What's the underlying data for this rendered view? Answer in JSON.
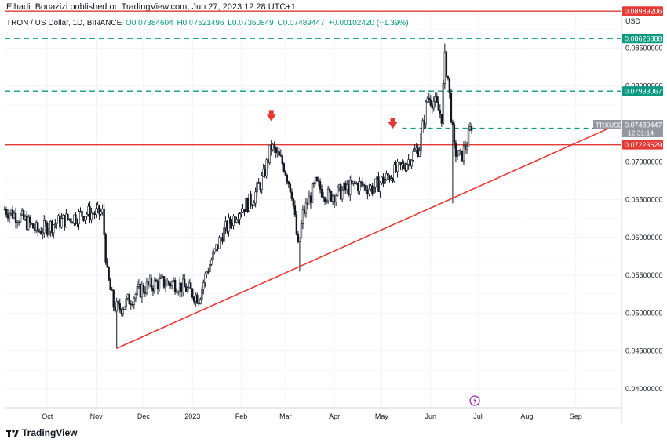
{
  "header": {
    "publisher": "Elhadi_Bouazizi published on TradingView.com, Jun 27, 2023 12:28 UTC+1"
  },
  "symbol": {
    "title": "TRON / US Dollar, 1D, BINANCE",
    "open": "O0.07384604",
    "high": "H0.07521496",
    "low": "L0.07360849",
    "close": "C0.07489447",
    "change": "+0.00102420 (+1.39%)"
  },
  "footer": {
    "brand": "TradingView",
    "logo": "tradingview-logo-icon"
  },
  "colors": {
    "up": "#26a69a",
    "down": "#ef5350",
    "candle": "#131722",
    "resistance": "#e53935",
    "teal_level": "#089981",
    "price_tag": "#9598a1"
  },
  "chart_data": {
    "type": "candlestick",
    "currency": "USD",
    "ylim": [
      0.0375,
      0.0895
    ],
    "xlim": [
      "2022-09-04",
      "2023-09-30"
    ],
    "x_ticks": [
      {
        "label": "Oct",
        "date": "2022-10-01"
      },
      {
        "label": "Nov",
        "date": "2022-11-01"
      },
      {
        "label": "Dec",
        "date": "2022-12-01"
      },
      {
        "label": "2023",
        "date": "2023-01-01"
      },
      {
        "label": "Feb",
        "date": "2023-02-01"
      },
      {
        "label": "Mar",
        "date": "2023-03-01"
      },
      {
        "label": "Apr",
        "date": "2023-04-01"
      },
      {
        "label": "May",
        "date": "2023-05-01"
      },
      {
        "label": "Jun",
        "date": "2023-06-01"
      },
      {
        "label": "Jul",
        "date": "2023-07-01"
      },
      {
        "label": "Aug",
        "date": "2023-08-01"
      },
      {
        "label": "Sep",
        "date": "2023-09-01"
      }
    ],
    "y_ticks": [
      "0.04000000",
      "0.04500000",
      "0.05000000",
      "0.05500000",
      "0.06000000",
      "0.06500000",
      "0.07000000",
      "0.08000000",
      "0.08500000"
    ],
    "price_path": [
      [
        "2022-09-04",
        0.0637
      ],
      [
        "2022-09-15",
        0.0625
      ],
      [
        "2022-09-25",
        0.0608
      ],
      [
        "2022-10-05",
        0.0618
      ],
      [
        "2022-10-15",
        0.0625
      ],
      [
        "2022-10-25",
        0.0632
      ],
      [
        "2022-11-05",
        0.0632
      ],
      [
        "2022-11-08",
        0.055
      ],
      [
        "2022-11-12",
        0.051
      ],
      [
        "2022-11-15",
        0.0505
      ],
      [
        "2022-11-22",
        0.0518
      ],
      [
        "2022-11-30",
        0.0532
      ],
      [
        "2022-12-10",
        0.054
      ],
      [
        "2022-12-20",
        0.054
      ],
      [
        "2022-12-30",
        0.053
      ],
      [
        "2023-01-05",
        0.052
      ],
      [
        "2023-01-10",
        0.0555
      ],
      [
        "2023-01-20",
        0.0605
      ],
      [
        "2023-01-30",
        0.0635
      ],
      [
        "2023-02-08",
        0.065
      ],
      [
        "2023-02-15",
        0.068
      ],
      [
        "2023-02-20",
        0.072
      ],
      [
        "2023-02-28",
        0.0695
      ],
      [
        "2023-03-05",
        0.066
      ],
      [
        "2023-03-09",
        0.0585
      ],
      [
        "2023-03-12",
        0.063
      ],
      [
        "2023-03-20",
        0.067
      ],
      [
        "2023-03-28",
        0.0655
      ],
      [
        "2023-04-05",
        0.066
      ],
      [
        "2023-04-15",
        0.067
      ],
      [
        "2023-04-25",
        0.0665
      ],
      [
        "2023-05-05",
        0.068
      ],
      [
        "2023-05-15",
        0.0695
      ],
      [
        "2023-05-25",
        0.072
      ],
      [
        "2023-05-30",
        0.0785
      ],
      [
        "2023-06-03",
        0.078
      ],
      [
        "2023-06-08",
        0.076
      ],
      [
        "2023-06-10",
        0.0835
      ],
      [
        "2023-06-12",
        0.081
      ],
      [
        "2023-06-16",
        0.0715
      ],
      [
        "2023-06-20",
        0.0705
      ],
      [
        "2023-06-24",
        0.0725
      ],
      [
        "2023-06-27",
        0.0749
      ]
    ],
    "candle_highlights": [
      {
        "date": "2023-02-20",
        "high": 0.0729
      },
      {
        "date": "2023-06-10",
        "high": 0.0856
      },
      {
        "date": "2022-11-14",
        "low": 0.0453
      },
      {
        "date": "2023-03-10",
        "low": 0.0555
      },
      {
        "date": "2023-06-15",
        "low": 0.0645
      }
    ],
    "horizontal_levels": [
      {
        "value": 0.08989206,
        "label": "0.08989206",
        "style": "solid",
        "color": "#e53935"
      },
      {
        "value": 0.08626888,
        "label": "0.08626888",
        "style": "dashed",
        "color": "#089981"
      },
      {
        "value": 0.07933067,
        "label": "0.07933067",
        "style": "dashed",
        "color": "#089981"
      },
      {
        "value": 0.07441415,
        "label": "0.07441415",
        "style": "dashed-short",
        "color": "#089981"
      },
      {
        "value": 0.07223629,
        "label": "0.07223629",
        "style": "solid",
        "color": "#e53935"
      }
    ],
    "last_price": {
      "ticker": "TRXUSD",
      "value": "0.07489447",
      "countdown": "12:31:14"
    },
    "trendline": {
      "from": [
        "2022-11-14",
        0.04535
      ],
      "to": [
        "2023-09-22",
        0.07441415
      ],
      "color": "#e53935"
    },
    "down_arrows": [
      {
        "date": "2023-02-20",
        "price": 0.076
      },
      {
        "date": "2023-05-08",
        "price": 0.075
      }
    ],
    "event_icon": {
      "date": "2023-06-29",
      "name": "lightning-event-icon"
    }
  }
}
